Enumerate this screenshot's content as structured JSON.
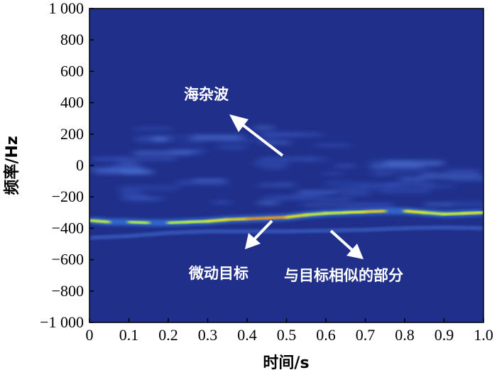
{
  "chart_data": {
    "type": "heatmap",
    "title": "",
    "xlabel": "时间/s",
    "ylabel": "频率/Hz",
    "xlim": [
      0,
      1.0
    ],
    "ylim": [
      -1000,
      1000
    ],
    "x_ticks": [
      "0",
      "0.1",
      "0.2",
      "0.3",
      "0.4",
      "0.5",
      "0.6",
      "0.7",
      "0.8",
      "0.9",
      "1.0"
    ],
    "y_ticks": [
      "1 000",
      "800",
      "600",
      "400",
      "200",
      "0",
      "−200",
      "−400",
      "−600",
      "−800",
      "−1 000"
    ],
    "colormap": "jet",
    "background_color": "#1f2f8a",
    "micro_motion_target": {
      "x": [
        0.0,
        0.05,
        0.1,
        0.15,
        0.2,
        0.25,
        0.3,
        0.35,
        0.4,
        0.45,
        0.5,
        0.55,
        0.6,
        0.65,
        0.7,
        0.75,
        0.8,
        0.85,
        0.9,
        0.95,
        1.0
      ],
      "y": [
        -350,
        -360,
        -360,
        -365,
        -365,
        -360,
        -355,
        -345,
        -340,
        -335,
        -330,
        -315,
        -305,
        -300,
        -295,
        -290,
        -290,
        -300,
        -310,
        -305,
        -300
      ],
      "intensity": [
        0.55,
        0.6,
        0.55,
        0.5,
        0.5,
        0.55,
        0.6,
        0.7,
        0.85,
        1.0,
        0.85,
        0.6,
        0.55,
        0.6,
        0.7,
        0.85,
        0.75,
        0.6,
        0.55,
        0.65,
        0.6
      ]
    },
    "similar_part": {
      "x": [
        0.0,
        0.1,
        0.2,
        0.3,
        0.4,
        0.5,
        0.6,
        0.7,
        0.8,
        0.9,
        1.0
      ],
      "y": [
        -460,
        -450,
        -430,
        -420,
        -420,
        -420,
        -415,
        -410,
        -400,
        -395,
        -400
      ]
    },
    "sea_clutter": {
      "y_center": 0,
      "y_spread": 260
    },
    "annotations": [
      {
        "text": "海杂波"
      },
      {
        "text": "微动目标"
      },
      {
        "text": "与目标相似的部分"
      }
    ]
  }
}
